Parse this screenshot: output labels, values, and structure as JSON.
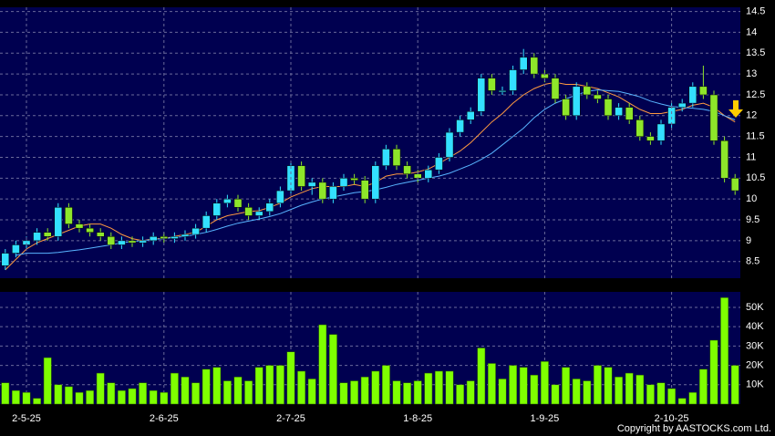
{
  "chart_data": [
    {
      "type": "candlestick",
      "open": [
        8.4,
        8.7,
        8.9,
        9.0,
        9.2,
        9.1,
        9.8,
        9.4,
        9.3,
        9.2,
        9.1,
        8.9,
        9.0,
        8.95,
        9.0,
        9.1,
        9.05,
        9.1,
        9.15,
        9.3,
        9.6,
        9.9,
        10.0,
        9.8,
        9.6,
        9.7,
        9.9,
        10.2,
        10.8,
        10.3,
        10.4,
        10.0,
        10.3,
        10.5,
        10.45,
        10.0,
        10.8,
        11.2,
        10.8,
        10.6,
        10.5,
        10.7,
        11.0,
        11.6,
        11.9,
        12.1,
        12.9,
        12.6,
        12.6,
        13.1,
        13.4,
        13.0,
        12.9,
        12.4,
        12.0,
        12.7,
        12.5,
        12.4,
        12.0,
        12.2,
        11.9,
        11.5,
        11.4,
        11.8,
        12.2,
        12.3,
        12.7,
        12.5,
        11.4,
        10.5
      ],
      "high": [
        8.8,
        9.0,
        9.1,
        9.3,
        9.3,
        9.9,
        9.9,
        9.5,
        9.4,
        9.3,
        9.2,
        9.1,
        9.1,
        9.1,
        9.2,
        9.2,
        9.2,
        9.25,
        9.4,
        9.7,
        10.0,
        10.1,
        10.1,
        9.9,
        9.8,
        10.0,
        10.3,
        10.9,
        10.9,
        10.5,
        10.5,
        10.4,
        10.6,
        10.6,
        10.55,
        10.9,
        11.3,
        11.3,
        10.9,
        10.7,
        10.8,
        11.1,
        11.7,
        12.0,
        12.2,
        13.0,
        13.0,
        12.7,
        13.2,
        13.6,
        13.5,
        13.1,
        13.0,
        12.5,
        12.8,
        12.8,
        12.6,
        12.5,
        12.3,
        12.3,
        12.0,
        11.6,
        11.9,
        12.3,
        12.4,
        12.8,
        13.2,
        12.6,
        11.5,
        10.6
      ],
      "low": [
        8.3,
        8.6,
        8.8,
        8.9,
        9.0,
        9.0,
        9.3,
        9.2,
        9.1,
        9.0,
        8.8,
        8.8,
        8.85,
        8.85,
        8.9,
        8.95,
        8.95,
        9.0,
        9.05,
        9.2,
        9.5,
        9.8,
        9.7,
        9.5,
        9.5,
        9.6,
        9.8,
        10.1,
        10.2,
        10.1,
        9.9,
        9.9,
        10.2,
        10.35,
        9.9,
        9.9,
        10.7,
        10.7,
        10.5,
        10.4,
        10.4,
        10.6,
        10.9,
        11.5,
        11.8,
        12.0,
        12.5,
        12.5,
        12.5,
        13.0,
        12.9,
        12.8,
        12.3,
        11.9,
        11.9,
        12.4,
        12.3,
        11.9,
        11.9,
        11.8,
        11.4,
        11.3,
        11.3,
        11.7,
        12.1,
        12.2,
        12.4,
        11.3,
        10.4,
        10.1
      ],
      "close": [
        8.7,
        8.9,
        9.0,
        9.2,
        9.1,
        9.8,
        9.4,
        9.3,
        9.2,
        9.1,
        8.9,
        9.0,
        8.95,
        9.0,
        9.1,
        9.05,
        9.1,
        9.15,
        9.3,
        9.6,
        9.9,
        10.0,
        9.8,
        9.6,
        9.7,
        9.9,
        10.2,
        10.8,
        10.3,
        10.4,
        10.0,
        10.3,
        10.5,
        10.45,
        10.0,
        10.8,
        11.2,
        10.8,
        10.6,
        10.5,
        10.7,
        11.0,
        11.6,
        11.9,
        12.1,
        12.9,
        12.6,
        12.6,
        13.1,
        13.4,
        13.0,
        12.9,
        12.4,
        12.0,
        12.7,
        12.5,
        12.4,
        12.0,
        12.2,
        11.9,
        11.5,
        11.4,
        11.8,
        12.2,
        12.3,
        12.7,
        12.5,
        11.4,
        10.5,
        10.2
      ],
      "up_color": "#33e0ff",
      "down_color": "#8ee62a",
      "series": [
        {
          "color": "#ff9a40",
          "values": [
            8.3,
            8.55,
            8.8,
            8.95,
            9.05,
            9.15,
            9.25,
            9.35,
            9.4,
            9.4,
            9.3,
            9.15,
            9.05,
            9.0,
            9.05,
            9.05,
            9.1,
            9.15,
            9.2,
            9.35,
            9.5,
            9.6,
            9.65,
            9.7,
            9.72,
            9.8,
            9.9,
            10.05,
            10.15,
            10.25,
            10.3,
            10.3,
            10.3,
            10.35,
            10.3,
            10.4,
            10.55,
            10.6,
            10.6,
            10.65,
            10.72,
            10.85,
            11.0,
            11.15,
            11.35,
            11.6,
            11.85,
            12.05,
            12.3,
            12.5,
            12.65,
            12.75,
            12.8,
            12.75,
            12.75,
            12.7,
            12.65,
            12.55,
            12.45,
            12.3,
            12.15,
            12.05,
            12.05,
            12.1,
            12.15,
            12.25,
            12.3,
            12.2,
            12.0,
            11.85
          ]
        },
        {
          "color": "#58b4ff",
          "values": [
            null,
            8.65,
            8.7,
            8.7,
            8.7,
            8.72,
            8.75,
            8.78,
            8.82,
            8.86,
            8.9,
            8.95,
            8.98,
            9.0,
            9.03,
            9.05,
            9.08,
            9.1,
            9.15,
            9.2,
            9.27,
            9.35,
            9.42,
            9.47,
            9.52,
            9.58,
            9.65,
            9.75,
            9.85,
            9.93,
            10.0,
            10.05,
            10.1,
            10.15,
            10.18,
            10.22,
            10.28,
            10.35,
            10.4,
            10.45,
            10.5,
            10.55,
            10.62,
            10.72,
            10.82,
            10.95,
            11.1,
            11.3,
            11.5,
            11.7,
            11.95,
            12.15,
            12.3,
            12.4,
            12.5,
            12.58,
            12.62,
            12.6,
            12.58,
            12.52,
            12.45,
            12.35,
            12.28,
            12.22,
            12.2,
            12.18,
            12.15,
            12.1,
            12.0,
            11.9
          ]
        }
      ],
      "ylim": [
        8.1,
        14.6
      ],
      "yticks": [
        8.5,
        9,
        9.5,
        10,
        10.5,
        11,
        11.5,
        12,
        12.5,
        13,
        13.5,
        14,
        14.5
      ],
      "grid": true
    },
    {
      "type": "bar",
      "categories": [
        null,
        null,
        "2-5-25",
        null,
        null,
        null,
        null,
        null,
        null,
        null,
        null,
        null,
        null,
        null,
        null,
        "2-6-25",
        null,
        null,
        null,
        null,
        null,
        null,
        null,
        null,
        null,
        null,
        null,
        "2-7-25",
        null,
        null,
        null,
        null,
        null,
        null,
        null,
        null,
        null,
        null,
        null,
        "1-8-25",
        null,
        null,
        null,
        null,
        null,
        null,
        null,
        null,
        null,
        null,
        null,
        "1-9-25",
        null,
        null,
        null,
        null,
        null,
        null,
        null,
        null,
        null,
        null,
        null,
        "2-10-25",
        null,
        null,
        null,
        null,
        null,
        null
      ],
      "values": [
        11000,
        7000,
        6000,
        3000,
        24000,
        10000,
        9000,
        6000,
        7000,
        16000,
        11000,
        7000,
        8000,
        11000,
        7000,
        6000,
        16000,
        14000,
        11000,
        18000,
        19000,
        12000,
        14000,
        12000,
        19000,
        20000,
        20000,
        27000,
        17000,
        13000,
        41000,
        36000,
        11000,
        12000,
        14000,
        17000,
        20000,
        12000,
        11000,
        12000,
        16000,
        17000,
        17000,
        10000,
        12000,
        29000,
        21000,
        13000,
        20000,
        19000,
        15000,
        22000,
        10000,
        19000,
        13000,
        12000,
        20000,
        19000,
        14000,
        16000,
        15000,
        10000,
        11000,
        8000,
        3000,
        6000,
        18000,
        33000,
        55000,
        20000
      ],
      "color": "#7fff00",
      "ylim": [
        0,
        58000
      ],
      "yticks": [
        {
          "value": 10000,
          "label": "10K"
        },
        {
          "value": 20000,
          "label": "20K"
        },
        {
          "value": 30000,
          "label": "30K"
        },
        {
          "value": 40000,
          "label": "40K"
        },
        {
          "value": 50000,
          "label": "50K"
        }
      ],
      "grid": true
    }
  ],
  "copyright": "Copyright by AASTOCKS.com Ltd."
}
